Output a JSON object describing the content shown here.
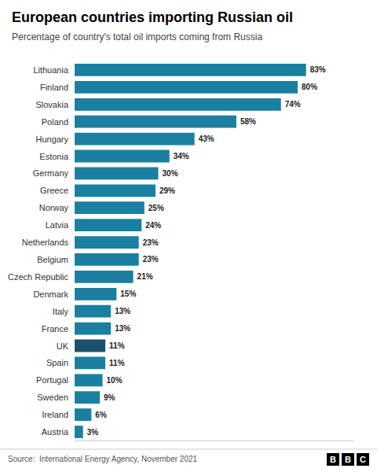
{
  "chart_data": {
    "type": "bar",
    "orientation": "horizontal",
    "title": "European countries importing Russian oil",
    "subtitle": "Percentage of country's total oil imports coming from Russia",
    "annotations": [
      "Source:  International Energy Agency, November 2021",
      "BBC"
    ],
    "categories": [
      "Lithuania",
      "Finland",
      "Slovakia",
      "Poland",
      "Hungary",
      "Estonia",
      "Germany",
      "Greece",
      "Norway",
      "Latvia",
      "Netherlands",
      "Belgium",
      "Czech Republic",
      "Denmark",
      "Italy",
      "France",
      "UK",
      "Spain",
      "Portugal",
      "Sweden",
      "Ireland",
      "Austria"
    ],
    "values": [
      83,
      80,
      74,
      58,
      43,
      34,
      30,
      29,
      25,
      24,
      23,
      23,
      21,
      15,
      13,
      13,
      11,
      11,
      10,
      9,
      6,
      3
    ],
    "value_labels": [
      "83%",
      "80%",
      "74%",
      "58%",
      "43%",
      "34%",
      "30%",
      "29%",
      "25%",
      "24%",
      "23%",
      "23%",
      "21%",
      "15%",
      "13%",
      "13%",
      "11%",
      "11%",
      "10%",
      "9%",
      "6%",
      "3%"
    ],
    "colors": [
      "#1a7fa0",
      "#1a7fa0",
      "#1a7fa0",
      "#1a7fa0",
      "#1a7fa0",
      "#1a7fa0",
      "#1a7fa0",
      "#1a7fa0",
      "#1a7fa0",
      "#1a7fa0",
      "#1a7fa0",
      "#1a7fa0",
      "#1a7fa0",
      "#1a7fa0",
      "#1a7fa0",
      "#1a7fa0",
      "#1a4f6e",
      "#1a7fa0",
      "#1a7fa0",
      "#1a7fa0",
      "#1a7fa0",
      "#1a7fa0"
    ],
    "xlim": [
      0,
      100
    ],
    "data_labels": true,
    "tick_labels": "y",
    "grid": false
  }
}
